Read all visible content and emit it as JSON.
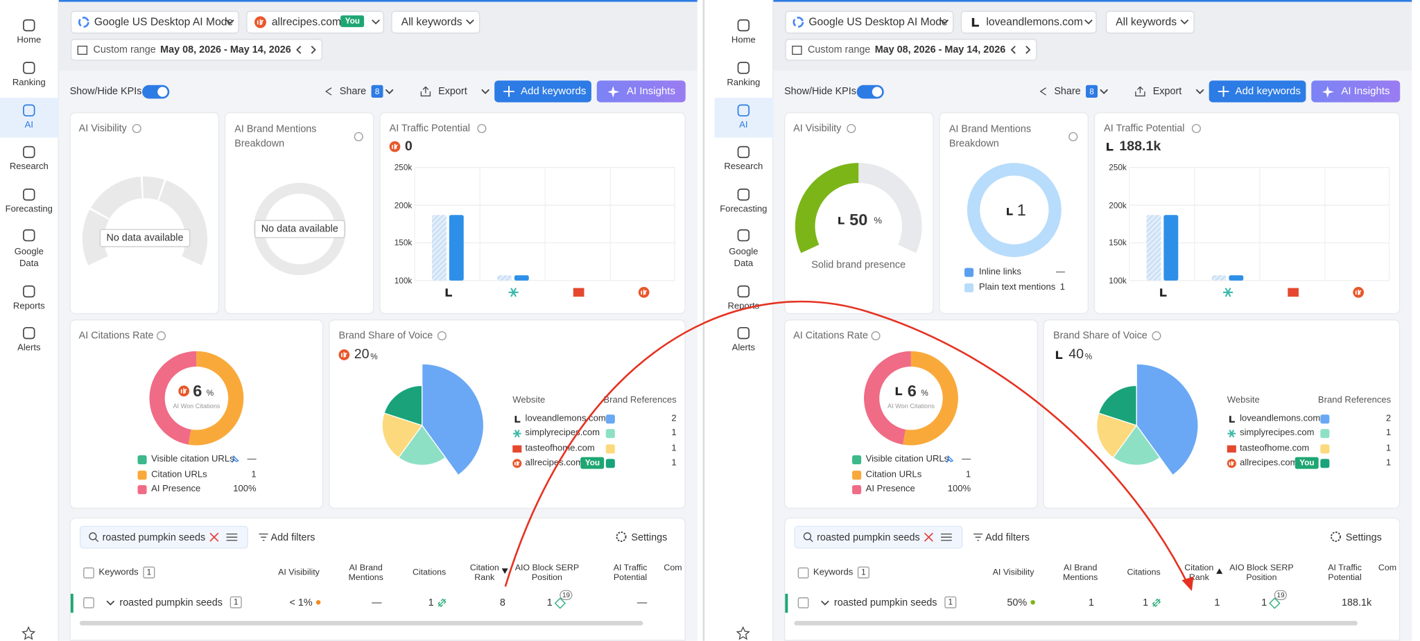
{
  "sidebar": {
    "items": [
      "Home",
      "Ranking",
      "AI",
      "Research",
      "Forecasting",
      "Google Data",
      "Reports",
      "Alerts"
    ]
  },
  "panels": [
    {
      "toolbar": {
        "engine": "Google US Desktop AI Mode",
        "domain": "allrecipes.com",
        "you_badge": "You",
        "keywords_filter": "All keywords",
        "range_label": "Custom range",
        "range": "May 08, 2026 - May 14, 2026"
      },
      "actions": {
        "kpi_toggle": "Show/Hide KPIs",
        "share": "Share",
        "share_count": "8",
        "export": "Export",
        "add_keywords": "Add keywords",
        "ai_insights": "AI Insights"
      },
      "ai_visibility": {
        "title": "AI Visibility",
        "empty": "No data available"
      },
      "brand_mentions": {
        "title": "AI Brand Mentions Breakdown",
        "empty": "No data available"
      },
      "traffic": {
        "title": "AI Traffic Potential",
        "value": "0",
        "ylim": [
          100000,
          250000
        ],
        "yticks": [
          {
            "value": 250000,
            "label": "250k"
          },
          {
            "value": 200000,
            "label": "200k"
          },
          {
            "value": 150000,
            "label": "150k"
          },
          {
            "value": 100000,
            "label": "100k"
          }
        ],
        "series": [
          {
            "color": "#cfe2f6",
            "values": [
              187000,
              107000,
              null,
              null
            ]
          },
          {
            "color": "#2e8fe8",
            "values": [
              187000,
              107000,
              null,
              null
            ]
          }
        ]
      },
      "citations": {
        "title": "AI Citations Rate",
        "value": 6,
        "unit": "%",
        "caption": "AI Won Citations",
        "legend": [
          {
            "label": "Visible citation URLs",
            "value": "—",
            "color": "#3cb88a"
          },
          {
            "label": "Citation URLs",
            "value": "1",
            "color": "#f9a93a"
          },
          {
            "label": "AI Presence",
            "value": "100%",
            "color": "#f06b85"
          }
        ]
      },
      "share_of_voice": {
        "title": "Brand Share of Voice",
        "value": 20,
        "unit": "%",
        "headers": [
          "Website",
          "Brand References"
        ],
        "you_badge": "You",
        "rows": [
          {
            "site": "loveandlemons.com",
            "refs": 2,
            "color": "#6aa8f5"
          },
          {
            "site": "simplyrecipes.com",
            "refs": 1,
            "color": "#8ee0c5"
          },
          {
            "site": "tasteofhome.com",
            "refs": 1,
            "color": "#fcd97c"
          },
          {
            "site": "allrecipes.com",
            "refs": 1,
            "color": "#1aa37a"
          }
        ]
      },
      "table": {
        "search": "roasted pumpkin seeds",
        "add_filters": "Add filters",
        "settings": "Settings",
        "keywords_header": "Keywords",
        "keywords_count": "1",
        "columns": [
          "AI Visibility",
          "AI Brand Mentions",
          "Citations",
          "Citation Rank",
          "AIO Block SERP Position",
          "AI Traffic Potential",
          "Com"
        ],
        "row": {
          "keyword": "roasted pumpkin seeds",
          "count": "1",
          "visibility": "< 1%",
          "mentions": "—",
          "citations": "1",
          "rank": "8",
          "aio": "1",
          "aio_sup": "19",
          "traffic": "—"
        }
      }
    },
    {
      "toolbar": {
        "engine": "Google US Desktop AI Mode",
        "domain": "loveandlemons.com",
        "keywords_filter": "All keywords",
        "range_label": "Custom range",
        "range": "May 08, 2026 - May 14, 2026"
      },
      "actions": {
        "kpi_toggle": "Show/Hide KPIs",
        "share": "Share",
        "share_count": "8",
        "export": "Export",
        "add_keywords": "Add keywords",
        "ai_insights": "AI Insights"
      },
      "ai_visibility": {
        "title": "AI Visibility",
        "value": 50,
        "unit": "%",
        "caption": "Solid brand presence"
      },
      "brand_mentions": {
        "title": "AI Brand Mentions Breakdown",
        "value": "1",
        "legend": [
          {
            "label": "Inline links",
            "value": "—",
            "color": "#5b9ff0"
          },
          {
            "label": "Plain text mentions",
            "value": "1",
            "color": "#b8dcfb"
          }
        ]
      },
      "traffic": {
        "title": "AI Traffic Potential",
        "value": "188.1k",
        "ylim": [
          100000,
          250000
        ],
        "yticks": [
          {
            "value": 250000,
            "label": "250k"
          },
          {
            "value": 200000,
            "label": "200k"
          },
          {
            "value": 150000,
            "label": "150k"
          },
          {
            "value": 100000,
            "label": "100k"
          }
        ],
        "series": [
          {
            "color": "#cfe2f6",
            "values": [
              187000,
              107000,
              null,
              null
            ]
          },
          {
            "color": "#2e8fe8",
            "values": [
              187000,
              107000,
              null,
              null
            ]
          }
        ]
      },
      "citations": {
        "title": "AI Citations Rate",
        "value": 6,
        "unit": "%",
        "caption": "AI Won Citations",
        "legend": [
          {
            "label": "Visible citation URLs",
            "value": "—",
            "color": "#3cb88a"
          },
          {
            "label": "Citation URLs",
            "value": "1",
            "color": "#f9a93a"
          },
          {
            "label": "AI Presence",
            "value": "100%",
            "color": "#f06b85"
          }
        ]
      },
      "share_of_voice": {
        "title": "Brand Share of Voice",
        "value": 40,
        "unit": "%",
        "headers": [
          "Website",
          "Brand References"
        ],
        "you_badge": "You",
        "rows": [
          {
            "site": "loveandlemons.com",
            "refs": 2,
            "color": "#6aa8f5"
          },
          {
            "site": "simplyrecipes.com",
            "refs": 1,
            "color": "#8ee0c5"
          },
          {
            "site": "tasteofhome.com",
            "refs": 1,
            "color": "#fcd97c"
          },
          {
            "site": "allrecipes.com",
            "refs": 1,
            "color": "#1aa37a"
          }
        ]
      },
      "table": {
        "search": "roasted pumpkin seeds",
        "add_filters": "Add filters",
        "settings": "Settings",
        "keywords_header": "Keywords",
        "keywords_count": "1",
        "columns": [
          "AI Visibility",
          "AI Brand Mentions",
          "Citations",
          "Citation Rank",
          "AIO Block SERP Position",
          "AI Traffic Potential",
          "Com"
        ],
        "row": {
          "keyword": "roasted pumpkin seeds",
          "count": "1",
          "visibility": "50%",
          "mentions": "1",
          "citations": "1",
          "rank": "1",
          "aio": "1",
          "aio_sup": "19",
          "traffic": "188.1k"
        }
      }
    }
  ]
}
